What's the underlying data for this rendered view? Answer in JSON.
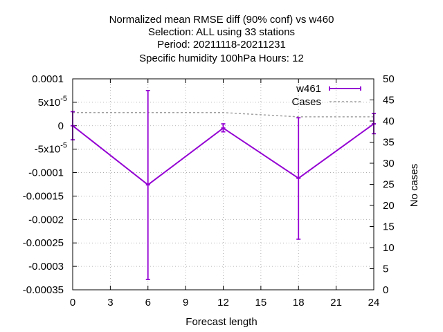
{
  "chart_data": {
    "type": "line",
    "title_lines": [
      "Normalized mean RMSE diff (90% conf) vs w460",
      "Selection: ALL using    33 stations",
      "Period: 20211118-20211231",
      "Specific humidity 100hPa   Hours:  12"
    ],
    "xlabel": "Forecast length",
    "ylabel": "",
    "y2label": "No cases",
    "xlim": [
      0,
      24
    ],
    "ylim": [
      -0.00035,
      0.0001
    ],
    "y2lim": [
      0,
      50
    ],
    "grid": true,
    "legend_position": "top-right",
    "x_ticks": [
      0,
      3,
      6,
      9,
      12,
      15,
      18,
      21,
      24
    ],
    "x_tick_labels": [
      "0",
      "3",
      "6",
      "9",
      "12",
      "15",
      "18",
      "21",
      "24"
    ],
    "y_ticks": [
      0.0001,
      5e-05,
      0,
      -5e-05,
      -0.0001,
      -0.00015,
      -0.0002,
      -0.00025,
      -0.0003,
      -0.00035
    ],
    "y_tick_labels": [
      "0.0001",
      "5x10",
      "0",
      "-5x10",
      "-0.0001",
      "-0.00015",
      "-0.0002",
      "-0.00025",
      "-0.0003",
      "-0.00035"
    ],
    "y_tick_exponents": [
      "",
      "-5",
      "",
      "-5",
      "",
      "",
      "",
      "",
      "",
      ""
    ],
    "y2_ticks": [
      0,
      5,
      10,
      15,
      20,
      25,
      30,
      35,
      40,
      45,
      50
    ],
    "y2_tick_labels": [
      "0",
      "5",
      "10",
      "15",
      "20",
      "25",
      "30",
      "35",
      "40",
      "45",
      "50"
    ],
    "series": [
      {
        "name": "w461",
        "color": "#9400d3",
        "x": [
          0,
          6,
          12,
          18,
          24
        ],
        "y": [
          0,
          -0.000126,
          -5e-06,
          -0.000112,
          4e-06
        ],
        "err_low": [
          -3e-05,
          -0.000328,
          -1.3e-05,
          -0.000242,
          -1.7e-05
        ],
        "err_high": [
          3e-05,
          7.5e-05,
          4e-06,
          1.7e-05,
          2.6e-05
        ]
      },
      {
        "name": "Cases",
        "color": "#a0a0a0",
        "axis": "y2",
        "x": [
          0,
          6,
          12,
          15,
          18,
          24
        ],
        "y": [
          42,
          42,
          42,
          41.5,
          41,
          41
        ]
      }
    ]
  }
}
